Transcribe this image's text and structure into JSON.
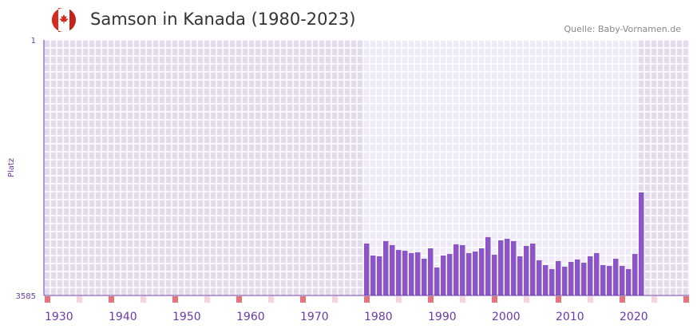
{
  "header": {
    "title": "Samson in Kanada (1980-2023)",
    "source": "Quelle: Baby-Vornamen.de",
    "flag": "canada-flag-icon"
  },
  "chart_data": {
    "type": "bar",
    "title": "Samson in Kanada (1980-2023)",
    "xlabel": "",
    "ylabel": "Platz",
    "y_reversed": true,
    "ylim": [
      1,
      3585
    ],
    "y_tick_labels": [
      "1",
      "3585"
    ],
    "xlim": [
      1930,
      2031
    ],
    "x_tick_labels": [
      "1930",
      "1940",
      "1950",
      "1960",
      "1970",
      "1980",
      "1990",
      "2000",
      "2010",
      "2020"
    ],
    "categories": [
      1980,
      1981,
      1982,
      1983,
      1984,
      1985,
      1986,
      1987,
      1988,
      1989,
      1990,
      1991,
      1992,
      1993,
      1994,
      1995,
      1996,
      1997,
      1998,
      1999,
      2000,
      2001,
      2002,
      2003,
      2004,
      2005,
      2006,
      2007,
      2008,
      2009,
      2010,
      2011,
      2012,
      2013,
      2014,
      2015,
      2016,
      2017,
      2018,
      2019,
      2020,
      2021,
      2022,
      2023
    ],
    "values": [
      2857,
      3025,
      3035,
      2823,
      2879,
      2947,
      2958,
      2991,
      2980,
      3070,
      2924,
      3193,
      3025,
      3003,
      2868,
      2879,
      2991,
      2969,
      2924,
      2767,
      3014,
      2812,
      2790,
      2823,
      3035,
      2891,
      2857,
      3092,
      3159,
      3215,
      3103,
      3182,
      3115,
      3081,
      3126,
      3035,
      2991,
      3159,
      3171,
      3070,
      3171,
      3215,
      3003,
      2140
    ],
    "colors": {
      "bar": "#8b55c8",
      "axis": "#6a3aa8",
      "tick_text": "#6a3aa8",
      "bg_out": "#e2dcec",
      "bg_in": "#efeaf8",
      "marker": "#e5737a",
      "marker_light": "#f3d6dd"
    },
    "grid": true
  }
}
